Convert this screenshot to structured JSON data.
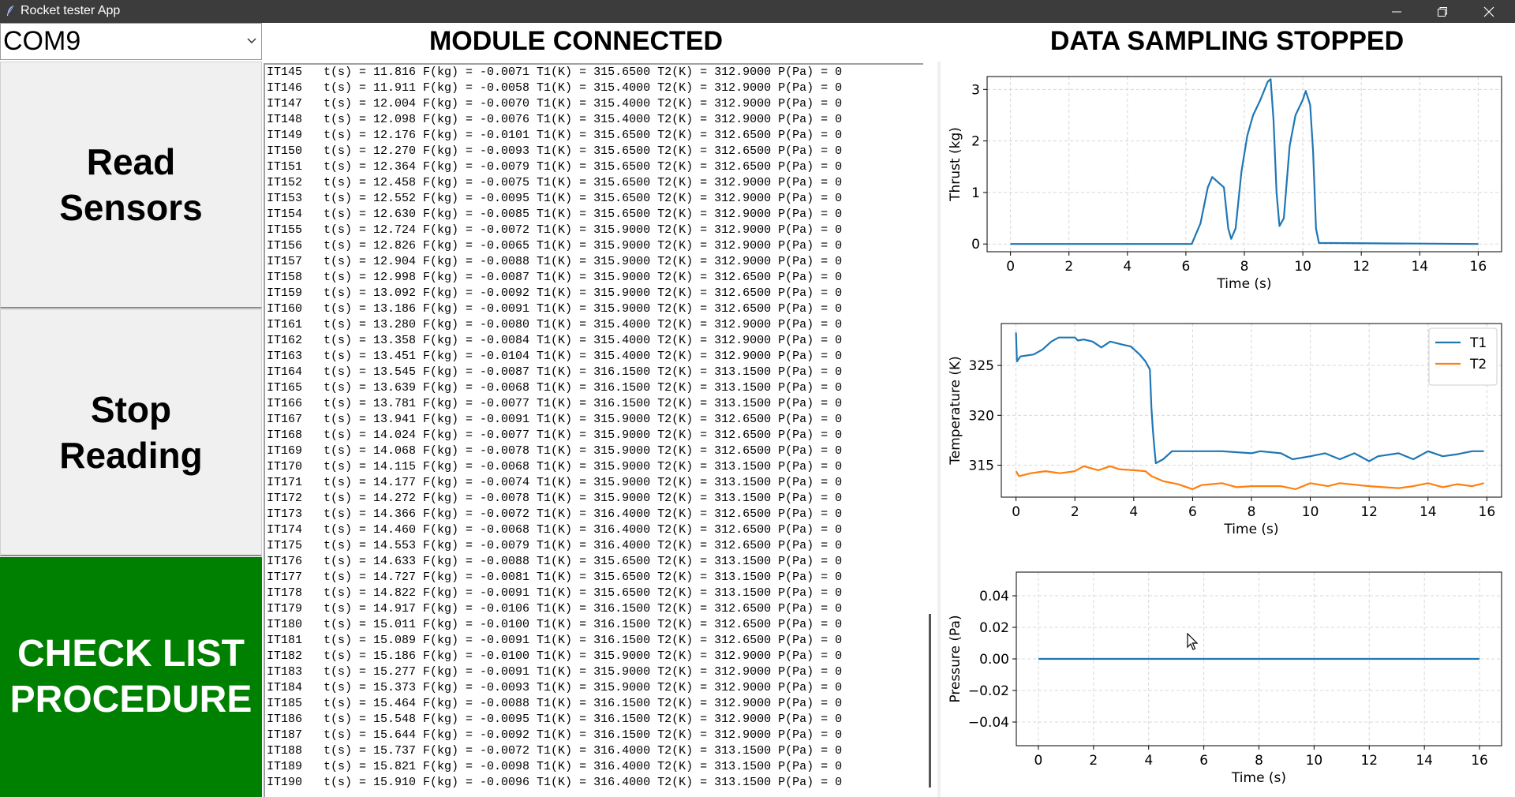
{
  "window": {
    "title": "Rocket tester App",
    "icon": "feather-icon"
  },
  "port": {
    "selected": "COM9"
  },
  "buttons": {
    "read": "Read\nSensors",
    "stop": "Stop\nReading",
    "checklist": "CHECK LIST\nPROCEDURE"
  },
  "colors": {
    "checklist_bg": "#008000",
    "series1": "#1f77b4",
    "series2": "#ff7f0e"
  },
  "status": {
    "module": "MODULE CONNECTED",
    "sampling": "DATA SAMPLING STOPPED"
  },
  "log": [
    "IT145   t(s) = 11.816 F(kg) = -0.0071 T1(K) = 315.6500 T2(K) = 312.9000 P(Pa) = 0",
    "IT146   t(s) = 11.911 F(kg) = -0.0058 T1(K) = 315.4000 T2(K) = 312.9000 P(Pa) = 0",
    "IT147   t(s) = 12.004 F(kg) = -0.0070 T1(K) = 315.4000 T2(K) = 312.9000 P(Pa) = 0",
    "IT148   t(s) = 12.098 F(kg) = -0.0076 T1(K) = 315.4000 T2(K) = 312.9000 P(Pa) = 0",
    "IT149   t(s) = 12.176 F(kg) = -0.0101 T1(K) = 315.6500 T2(K) = 312.6500 P(Pa) = 0",
    "IT150   t(s) = 12.270 F(kg) = -0.0093 T1(K) = 315.6500 T2(K) = 312.6500 P(Pa) = 0",
    "IT151   t(s) = 12.364 F(kg) = -0.0079 T1(K) = 315.6500 T2(K) = 312.6500 P(Pa) = 0",
    "IT152   t(s) = 12.458 F(kg) = -0.0075 T1(K) = 315.6500 T2(K) = 312.9000 P(Pa) = 0",
    "IT153   t(s) = 12.552 F(kg) = -0.0095 T1(K) = 315.6500 T2(K) = 312.9000 P(Pa) = 0",
    "IT154   t(s) = 12.630 F(kg) = -0.0085 T1(K) = 315.6500 T2(K) = 312.9000 P(Pa) = 0",
    "IT155   t(s) = 12.724 F(kg) = -0.0072 T1(K) = 315.9000 T2(K) = 312.9000 P(Pa) = 0",
    "IT156   t(s) = 12.826 F(kg) = -0.0065 T1(K) = 315.9000 T2(K) = 312.9000 P(Pa) = 0",
    "IT157   t(s) = 12.904 F(kg) = -0.0088 T1(K) = 315.9000 T2(K) = 312.9000 P(Pa) = 0",
    "IT158   t(s) = 12.998 F(kg) = -0.0087 T1(K) = 315.9000 T2(K) = 312.6500 P(Pa) = 0",
    "IT159   t(s) = 13.092 F(kg) = -0.0092 T1(K) = 315.9000 T2(K) = 312.6500 P(Pa) = 0",
    "IT160   t(s) = 13.186 F(kg) = -0.0091 T1(K) = 315.9000 T2(K) = 312.6500 P(Pa) = 0",
    "IT161   t(s) = 13.280 F(kg) = -0.0080 T1(K) = 315.4000 T2(K) = 312.9000 P(Pa) = 0",
    "IT162   t(s) = 13.358 F(kg) = -0.0084 T1(K) = 315.4000 T2(K) = 312.9000 P(Pa) = 0",
    "IT163   t(s) = 13.451 F(kg) = -0.0104 T1(K) = 315.4000 T2(K) = 312.9000 P(Pa) = 0",
    "IT164   t(s) = 13.545 F(kg) = -0.0087 T1(K) = 316.1500 T2(K) = 313.1500 P(Pa) = 0",
    "IT165   t(s) = 13.639 F(kg) = -0.0068 T1(K) = 316.1500 T2(K) = 313.1500 P(Pa) = 0",
    "IT166   t(s) = 13.781 F(kg) = -0.0077 T1(K) = 316.1500 T2(K) = 313.1500 P(Pa) = 0",
    "IT167   t(s) = 13.941 F(kg) = -0.0091 T1(K) = 315.9000 T2(K) = 312.6500 P(Pa) = 0",
    "IT168   t(s) = 14.024 F(kg) = -0.0077 T1(K) = 315.9000 T2(K) = 312.6500 P(Pa) = 0",
    "IT169   t(s) = 14.068 F(kg) = -0.0078 T1(K) = 315.9000 T2(K) = 312.6500 P(Pa) = 0",
    "IT170   t(s) = 14.115 F(kg) = -0.0068 T1(K) = 315.9000 T2(K) = 313.1500 P(Pa) = 0",
    "IT171   t(s) = 14.177 F(kg) = -0.0074 T1(K) = 315.9000 T2(K) = 313.1500 P(Pa) = 0",
    "IT172   t(s) = 14.272 F(kg) = -0.0078 T1(K) = 315.9000 T2(K) = 313.1500 P(Pa) = 0",
    "IT173   t(s) = 14.366 F(kg) = -0.0072 T1(K) = 316.4000 T2(K) = 312.6500 P(Pa) = 0",
    "IT174   t(s) = 14.460 F(kg) = -0.0068 T1(K) = 316.4000 T2(K) = 312.6500 P(Pa) = 0",
    "IT175   t(s) = 14.553 F(kg) = -0.0079 T1(K) = 316.4000 T2(K) = 312.6500 P(Pa) = 0",
    "IT176   t(s) = 14.633 F(kg) = -0.0088 T1(K) = 315.6500 T2(K) = 313.1500 P(Pa) = 0",
    "IT177   t(s) = 14.727 F(kg) = -0.0081 T1(K) = 315.6500 T2(K) = 313.1500 P(Pa) = 0",
    "IT178   t(s) = 14.822 F(kg) = -0.0091 T1(K) = 315.6500 T2(K) = 313.1500 P(Pa) = 0",
    "IT179   t(s) = 14.917 F(kg) = -0.0106 T1(K) = 316.1500 T2(K) = 312.6500 P(Pa) = 0",
    "IT180   t(s) = 15.011 F(kg) = -0.0100 T1(K) = 316.1500 T2(K) = 312.6500 P(Pa) = 0",
    "IT181   t(s) = 15.089 F(kg) = -0.0091 T1(K) = 316.1500 T2(K) = 312.6500 P(Pa) = 0",
    "IT182   t(s) = 15.186 F(kg) = -0.0100 T1(K) = 315.9000 T2(K) = 312.9000 P(Pa) = 0",
    "IT183   t(s) = 15.277 F(kg) = -0.0091 T1(K) = 315.9000 T2(K) = 312.9000 P(Pa) = 0",
    "IT184   t(s) = 15.373 F(kg) = -0.0093 T1(K) = 315.9000 T2(K) = 312.9000 P(Pa) = 0",
    "IT185   t(s) = 15.464 F(kg) = -0.0088 T1(K) = 316.1500 T2(K) = 312.9000 P(Pa) = 0",
    "IT186   t(s) = 15.548 F(kg) = -0.0095 T1(K) = 316.1500 T2(K) = 312.9000 P(Pa) = 0",
    "IT187   t(s) = 15.644 F(kg) = -0.0092 T1(K) = 316.1500 T2(K) = 312.9000 P(Pa) = 0",
    "IT188   t(s) = 15.737 F(kg) = -0.0072 T1(K) = 316.4000 T2(K) = 313.1500 P(Pa) = 0",
    "IT189   t(s) = 15.821 F(kg) = -0.0098 T1(K) = 316.4000 T2(K) = 313.1500 P(Pa) = 0",
    "IT190   t(s) = 15.910 F(kg) = -0.0096 T1(K) = 316.4000 T2(K) = 313.1500 P(Pa) = 0"
  ],
  "chart_data": [
    {
      "type": "line",
      "xlabel": "Time (s)",
      "ylabel": "Thrust (kg)",
      "xlim": [
        -0.8,
        16.8
      ],
      "ylim": [
        -0.15,
        3.25
      ],
      "xticks": [
        0,
        2,
        4,
        6,
        8,
        10,
        12,
        14,
        16
      ],
      "yticks": [
        0,
        1,
        2,
        3
      ],
      "grid": true,
      "series": [
        {
          "color": "#1f77b4",
          "points": [
            [
              0,
              0
            ],
            [
              6.2,
              0
            ],
            [
              6.5,
              0.4
            ],
            [
              6.75,
              1.1
            ],
            [
              6.9,
              1.3
            ],
            [
              7.1,
              1.2
            ],
            [
              7.3,
              1.1
            ],
            [
              7.45,
              0.3
            ],
            [
              7.55,
              0.1
            ],
            [
              7.7,
              0.3
            ],
            [
              7.9,
              1.4
            ],
            [
              8.1,
              2.1
            ],
            [
              8.3,
              2.5
            ],
            [
              8.55,
              2.8
            ],
            [
              8.8,
              3.15
            ],
            [
              8.9,
              3.2
            ],
            [
              9.0,
              2.4
            ],
            [
              9.1,
              1.0
            ],
            [
              9.2,
              0.35
            ],
            [
              9.35,
              0.5
            ],
            [
              9.55,
              1.9
            ],
            [
              9.75,
              2.5
            ],
            [
              10.0,
              2.8
            ],
            [
              10.1,
              2.97
            ],
            [
              10.25,
              2.7
            ],
            [
              10.35,
              1.8
            ],
            [
              10.45,
              0.3
            ],
            [
              10.55,
              0.02
            ],
            [
              16,
              0
            ]
          ]
        }
      ]
    },
    {
      "type": "line",
      "xlabel": "Time (s)",
      "ylabel": "Temperature (K)",
      "xlim": [
        -0.5,
        16.5
      ],
      "ylim": [
        311.8,
        329.2
      ],
      "xticks": [
        0,
        2,
        4,
        6,
        8,
        10,
        12,
        14,
        16
      ],
      "yticks": [
        315,
        320,
        325
      ],
      "grid": true,
      "legend": "top-right",
      "series": [
        {
          "name": "T1",
          "color": "#1f77b4",
          "points": [
            [
              0,
              328.3
            ],
            [
              0.03,
              325.4
            ],
            [
              0.15,
              325.9
            ],
            [
              0.6,
              326.1
            ],
            [
              0.9,
              326.6
            ],
            [
              1.2,
              327.4
            ],
            [
              1.45,
              327.8
            ],
            [
              2.0,
              327.8
            ],
            [
              2.1,
              327.5
            ],
            [
              2.3,
              327.6
            ],
            [
              2.6,
              327.4
            ],
            [
              2.9,
              326.8
            ],
            [
              3.2,
              327.4
            ],
            [
              3.6,
              327.1
            ],
            [
              3.9,
              326.9
            ],
            [
              4.2,
              326.1
            ],
            [
              4.4,
              325.4
            ],
            [
              4.55,
              324.6
            ],
            [
              4.6,
              320.8
            ],
            [
              4.65,
              318.5
            ],
            [
              4.7,
              316.8
            ],
            [
              4.75,
              315.2
            ],
            [
              5.0,
              315.6
            ],
            [
              5.3,
              316.4
            ],
            [
              6.0,
              316.4
            ],
            [
              7.0,
              316.4
            ],
            [
              8.0,
              316.2
            ],
            [
              8.3,
              316.4
            ],
            [
              9.0,
              316.2
            ],
            [
              9.4,
              315.6
            ],
            [
              10.0,
              315.9
            ],
            [
              10.5,
              316.2
            ],
            [
              11.0,
              315.6
            ],
            [
              11.5,
              316.2
            ],
            [
              12.0,
              315.4
            ],
            [
              12.3,
              315.9
            ],
            [
              13.0,
              316.2
            ],
            [
              13.5,
              315.6
            ],
            [
              14.0,
              316.4
            ],
            [
              14.5,
              315.9
            ],
            [
              15.0,
              316.1
            ],
            [
              15.5,
              316.4
            ],
            [
              15.9,
              316.4
            ]
          ]
        },
        {
          "name": "T2",
          "color": "#ff7f0e",
          "points": [
            [
              0,
              314.4
            ],
            [
              0.1,
              313.9
            ],
            [
              0.5,
              314.2
            ],
            [
              1.0,
              314.4
            ],
            [
              1.5,
              314.2
            ],
            [
              2.0,
              314.4
            ],
            [
              2.3,
              314.9
            ],
            [
              2.8,
              314.5
            ],
            [
              3.2,
              314.9
            ],
            [
              3.5,
              314.6
            ],
            [
              4.0,
              314.5
            ],
            [
              4.4,
              314.4
            ],
            [
              4.6,
              313.9
            ],
            [
              5.0,
              313.4
            ],
            [
              5.5,
              313.1
            ],
            [
              6.0,
              312.6
            ],
            [
              6.3,
              313.0
            ],
            [
              7.0,
              313.2
            ],
            [
              7.5,
              312.8
            ],
            [
              8.0,
              312.9
            ],
            [
              9.0,
              312.9
            ],
            [
              9.5,
              312.6
            ],
            [
              10.0,
              313.2
            ],
            [
              10.6,
              312.9
            ],
            [
              11.0,
              313.2
            ],
            [
              12.0,
              312.9
            ],
            [
              13.0,
              312.7
            ],
            [
              13.5,
              312.9
            ],
            [
              14.0,
              313.2
            ],
            [
              14.5,
              312.8
            ],
            [
              15.0,
              313.1
            ],
            [
              15.5,
              312.9
            ],
            [
              15.9,
              313.2
            ]
          ]
        }
      ]
    },
    {
      "type": "line",
      "xlabel": "Time (s)",
      "ylabel": "Pressure (Pa)",
      "xlim": [
        -0.8,
        16.8
      ],
      "ylim": [
        -0.055,
        0.055
      ],
      "xticks": [
        0,
        2,
        4,
        6,
        8,
        10,
        12,
        14,
        16
      ],
      "yticks": [
        -0.04,
        -0.02,
        0.0,
        0.02,
        0.04
      ],
      "ytick_labels": [
        "−0.04",
        "−0.02",
        "0.00",
        "0.02",
        "0.04"
      ],
      "grid": true,
      "series": [
        {
          "color": "#1f77b4",
          "points": [
            [
              0,
              0
            ],
            [
              16,
              0
            ]
          ]
        }
      ]
    }
  ]
}
